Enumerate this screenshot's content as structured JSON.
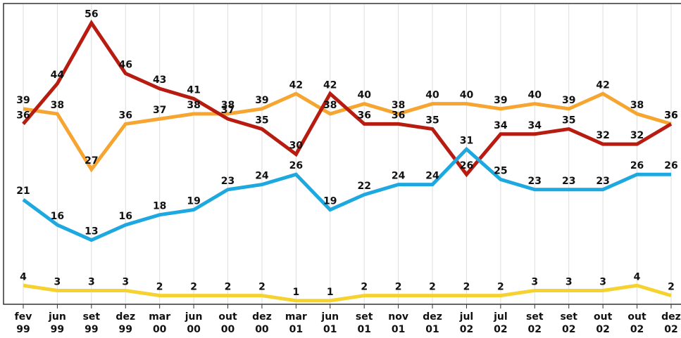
{
  "chart_data": {
    "type": "line",
    "categories": [
      "fev 99",
      "jun 99",
      "set 99",
      "dez 99",
      "mar 00",
      "jun 00",
      "out 00",
      "dez 00",
      "mar 01",
      "jun 01",
      "set 01",
      "nov 01",
      "dez 01",
      "jul 02",
      "jul 02",
      "set 02",
      "set 02",
      "out 02",
      "out 02",
      "dez 02"
    ],
    "series": [
      {
        "color": "#f6a531",
        "values": [
          39,
          38,
          27,
          36,
          37,
          38,
          38,
          39,
          42,
          38,
          40,
          38,
          40,
          40,
          39,
          40,
          39,
          42,
          38,
          36
        ]
      },
      {
        "color": "#b81c10",
        "values": [
          36,
          44,
          56,
          46,
          43,
          41,
          37,
          35,
          30,
          42,
          36,
          36,
          35,
          26,
          34,
          34,
          35,
          32,
          32,
          36
        ]
      },
      {
        "color": "#1ea8e0",
        "values": [
          21,
          16,
          13,
          16,
          18,
          19,
          23,
          24,
          26,
          19,
          22,
          24,
          24,
          31,
          25,
          23,
          23,
          23,
          26,
          26
        ]
      },
      {
        "color": "#f6d230",
        "values": [
          4,
          3,
          3,
          3,
          2,
          2,
          2,
          2,
          1,
          1,
          2,
          2,
          2,
          2,
          2,
          3,
          3,
          3,
          4,
          2
        ]
      }
    ],
    "ylim": [
      0,
      60
    ],
    "grid": true
  }
}
